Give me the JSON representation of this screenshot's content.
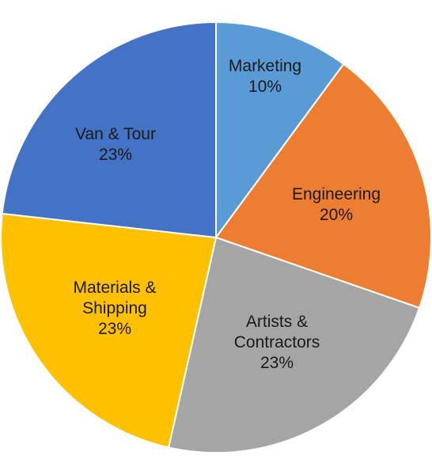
{
  "chart_data": {
    "type": "pie",
    "start_angle_deg": 0,
    "direction": "clockwise",
    "legend": "none",
    "slices": [
      {
        "lines": [
          "Marketing"
        ],
        "pct_label": "10%",
        "value": 10,
        "color": "#5B9BD5"
      },
      {
        "lines": [
          "Engineering"
        ],
        "pct_label": "20%",
        "value": 20,
        "color": "#ED7D31"
      },
      {
        "lines": [
          "Artists &",
          "Contractors"
        ],
        "pct_label": "23%",
        "value": 23,
        "color": "#A5A5A5"
      },
      {
        "lines": [
          "Materials &",
          "Shipping"
        ],
        "pct_label": "23%",
        "value": 23,
        "color": "#FFC000"
      },
      {
        "lines": [
          "Van & Tour"
        ],
        "pct_label": "23%",
        "value": 23,
        "color": "#4472C4"
      }
    ]
  }
}
